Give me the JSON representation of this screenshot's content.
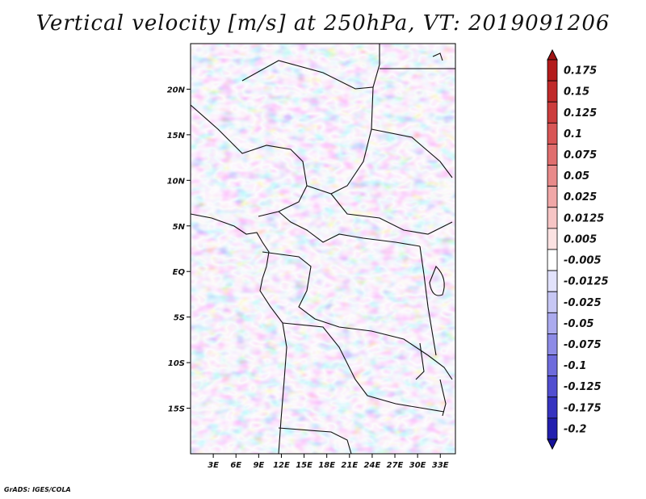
{
  "title": "Vertical velocity [m/s] at 250hPa, VT: 2019091206",
  "credit": "GrADS: IGES/COLA",
  "map": {
    "projection": "lat-lon",
    "lon_range": [
      0,
      35
    ],
    "lat_range": [
      -20,
      25
    ],
    "lat_ticks": [
      {
        "value": 20,
        "label": "20N"
      },
      {
        "value": 15,
        "label": "15N"
      },
      {
        "value": 10,
        "label": "10N"
      },
      {
        "value": 5,
        "label": "5N"
      },
      {
        "value": 0,
        "label": "EQ"
      },
      {
        "value": -5,
        "label": "5S"
      },
      {
        "value": -10,
        "label": "10S"
      },
      {
        "value": -15,
        "label": "15S"
      }
    ],
    "lon_ticks": [
      {
        "value": 3,
        "label": "3E"
      },
      {
        "value": 6,
        "label": "6E"
      },
      {
        "value": 9,
        "label": "9E"
      },
      {
        "value": 12,
        "label": "12E"
      },
      {
        "value": 15,
        "label": "15E"
      },
      {
        "value": 18,
        "label": "18E"
      },
      {
        "value": 21,
        "label": "21E"
      },
      {
        "value": 24,
        "label": "24E"
      },
      {
        "value": 27,
        "label": "27E"
      },
      {
        "value": 30,
        "label": "30E"
      },
      {
        "value": 33,
        "label": "33E"
      }
    ]
  },
  "colorbar": {
    "levels": [
      {
        "label": "0.175",
        "color": "#b31b1b"
      },
      {
        "label": "0.15",
        "color": "#c02a2a"
      },
      {
        "label": "0.125",
        "color": "#cc3d3d"
      },
      {
        "label": "0.1",
        "color": "#d85656"
      },
      {
        "label": "0.075",
        "color": "#e06e6e"
      },
      {
        "label": "0.05",
        "color": "#e88a8a"
      },
      {
        "label": "0.025",
        "color": "#f0a7a7"
      },
      {
        "label": "0.0125",
        "color": "#f6c5c5"
      },
      {
        "label": "0.005",
        "color": "#fbe2e2"
      },
      {
        "label": "-0.005",
        "color": "#ffffff"
      },
      {
        "label": "-0.0125",
        "color": "#e2e2fb"
      },
      {
        "label": "-0.025",
        "color": "#c7c7f4"
      },
      {
        "label": "-0.05",
        "color": "#abaaee"
      },
      {
        "label": "-0.075",
        "color": "#8d8be6"
      },
      {
        "label": "-0.1",
        "color": "#6e6bdc"
      },
      {
        "label": "-0.125",
        "color": "#514ed0"
      },
      {
        "label": "-0.175",
        "color": "#3633c0"
      },
      {
        "label": "-0.2",
        "color": "#221fae"
      }
    ],
    "top_triangle_color": "#a01515",
    "bottom_triangle_color": "#15129a"
  }
}
